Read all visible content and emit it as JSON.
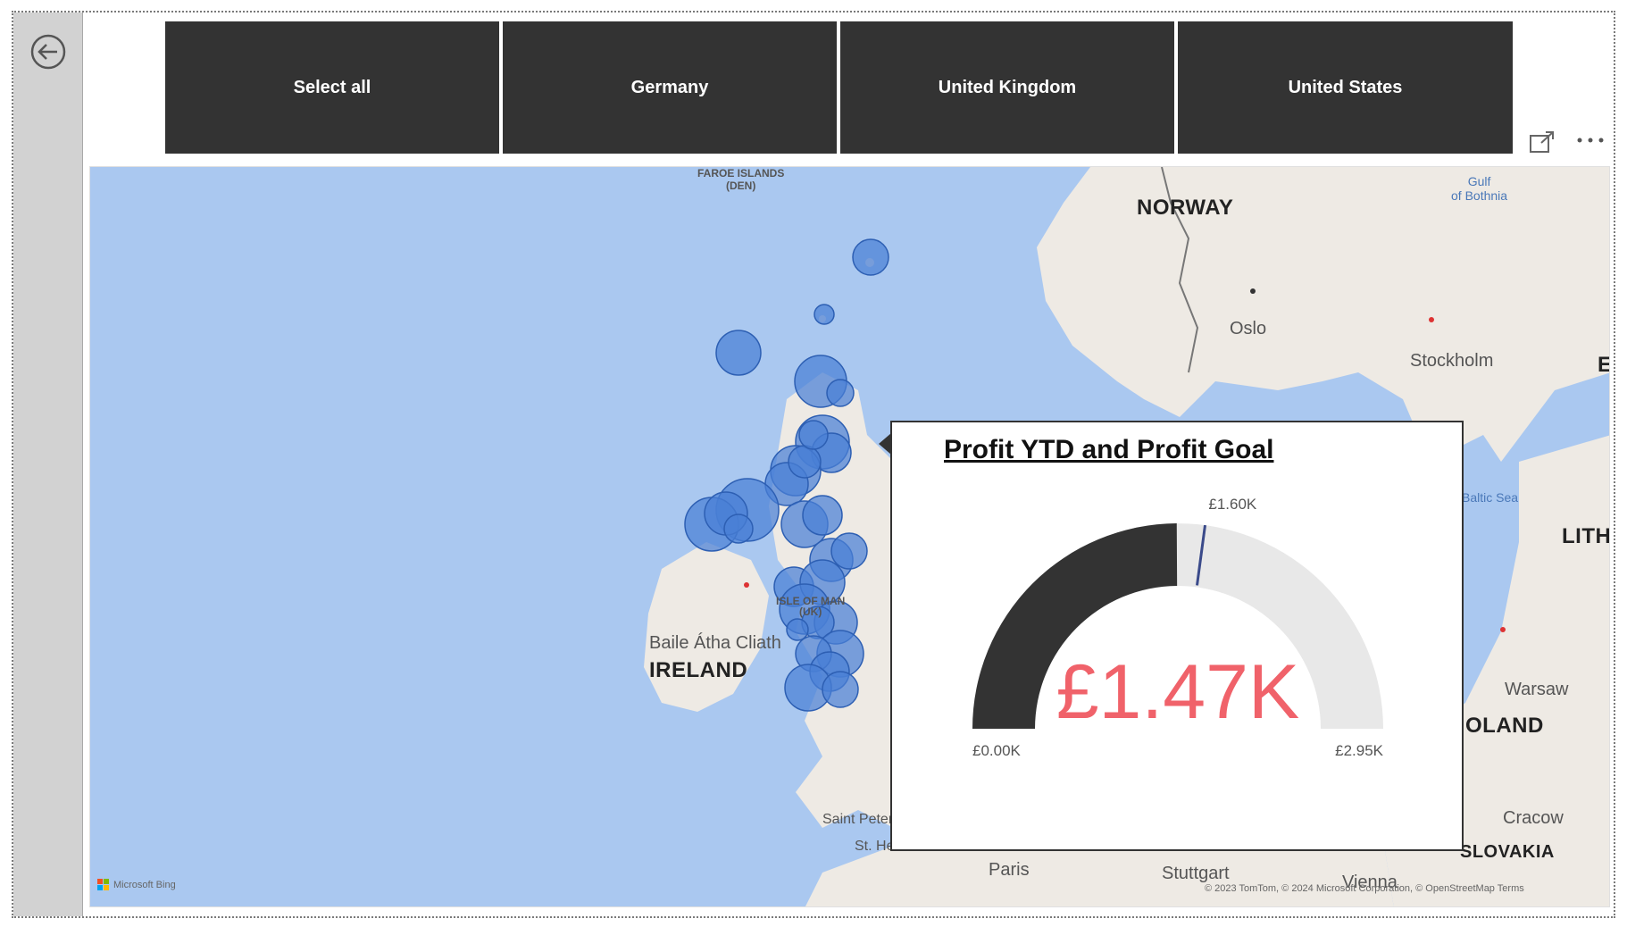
{
  "slicer": {
    "buttons": [
      "Select all",
      "Germany",
      "United Kingdom",
      "United States"
    ]
  },
  "visual_header": {
    "focus_icon": "focus-mode-icon",
    "more_icon": "more-options-icon"
  },
  "navigation": {
    "back_icon": "back-arrow-icon"
  },
  "map": {
    "provider": "Microsoft Bing",
    "copyright": "© 2023 TomTom, © 2024 Microsoft Corporation, © OpenStreetMap  Terms",
    "colors": {
      "water": "#aac8f0",
      "land": "#eeeae4",
      "bubble": "#4a7fd6"
    },
    "labels": {
      "faroe_line1": "FAROE ISLANDS",
      "faroe_line2": "(DEN)",
      "norway": "NORWAY",
      "oslo": "Oslo",
      "stockholm": "Stockholm",
      "gulf_line1": "Gulf",
      "gulf_line2": "of Bothnia",
      "baltic": "Baltic Sea",
      "lithu": "LITHU",
      "edge_e": "E",
      "ireland": "IRELAND",
      "baile": "Baile Átha Cliath",
      "isle_line1": "ISLE OF MAN",
      "isle_line2": "(UK)",
      "warsaw": "Warsaw",
      "poland": "OLAND",
      "cracow": "Cracow",
      "slovakia": "SLOVAKIA",
      "paris": "Paris",
      "stuttgart": "Stuttgart",
      "vienna": "Vienna",
      "saint": "Saint Peter",
      "sthel": "St. He"
    }
  },
  "tooltip": {
    "title": "Profit YTD and Profit Goal",
    "gauge": {
      "value": 1470,
      "value_label": "£1.47K",
      "min": 0,
      "min_label": "£0.00K",
      "max": 2950,
      "max_label": "£2.95K",
      "target": 1600,
      "target_label": "£1.60K",
      "colors": {
        "fill": "#333333",
        "track": "#e8e8e8",
        "target": "#3a4a8a",
        "value_text": "#f0626a"
      }
    }
  }
}
